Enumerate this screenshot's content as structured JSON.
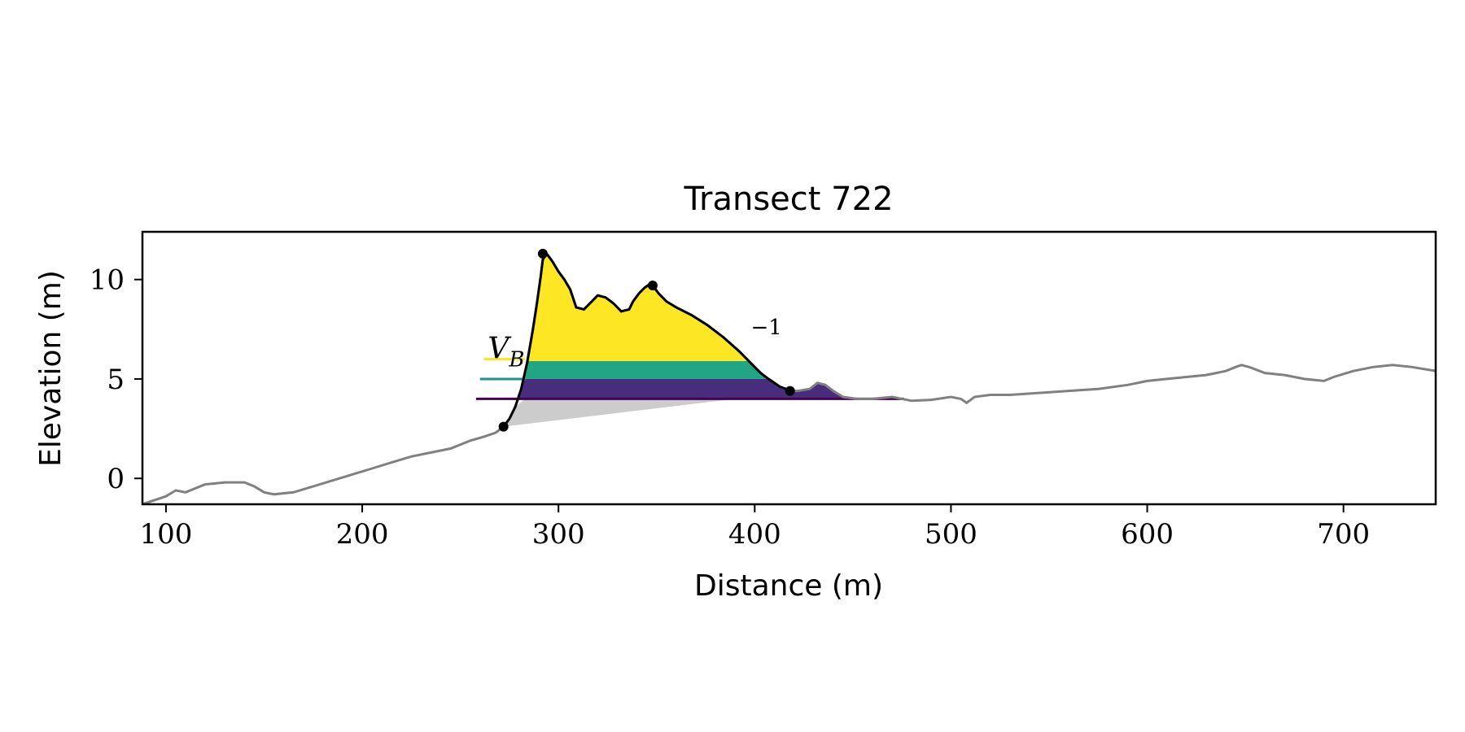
{
  "chart_data": {
    "type": "area",
    "title": "Transect 722",
    "xlabel": "Distance (m)",
    "ylabel": "Elevation (m)",
    "xlim": [
      88,
      747
    ],
    "ylim": [
      -1.3,
      12.4
    ],
    "xticks": [
      100,
      200,
      300,
      400,
      500,
      600,
      700
    ],
    "yticks": [
      0,
      5,
      10
    ],
    "grid": false,
    "legend": "none",
    "annotations": [
      {
        "text_base": "V",
        "text_sub": "B",
        "x": 264,
        "y": 6.2
      },
      {
        "text": "−1",
        "x": 398,
        "y": 7.0
      }
    ],
    "colors": {
      "profile_outer": "#808080",
      "profile_dune": "#000000",
      "base_fill": "#cccccc",
      "band_low": "#472d7b",
      "band_mid": "#21a585",
      "band_high": "#fde725",
      "line_low": "#440154",
      "line_mid": "#21918c",
      "line_high": "#fde725"
    },
    "profile": {
      "x": [
        88,
        100,
        105,
        110,
        120,
        130,
        140,
        145,
        150,
        155,
        165,
        175,
        185,
        195,
        205,
        215,
        225,
        235,
        245,
        255,
        262,
        268,
        272,
        275,
        278,
        281,
        284,
        287,
        289,
        291,
        292,
        294,
        297,
        300,
        303,
        306,
        309,
        313,
        317,
        320,
        324,
        328,
        332,
        336,
        338,
        341,
        344,
        347,
        348,
        351,
        355,
        360,
        368,
        376,
        384,
        392,
        398,
        403,
        407,
        410,
        413,
        416,
        418,
        422,
        428,
        432,
        436,
        440,
        445,
        452,
        460,
        470,
        480,
        490,
        500,
        505,
        508,
        512,
        520,
        530,
        545,
        560,
        575,
        590,
        600,
        610,
        620,
        630,
        640,
        645,
        648,
        652,
        660,
        670,
        680,
        690,
        695,
        705,
        715,
        725,
        735,
        747
      ],
      "y": [
        -1.3,
        -0.9,
        -0.6,
        -0.7,
        -0.3,
        -0.2,
        -0.2,
        -0.4,
        -0.7,
        -0.8,
        -0.7,
        -0.4,
        -0.1,
        0.2,
        0.5,
        0.8,
        1.1,
        1.3,
        1.5,
        1.9,
        2.1,
        2.3,
        2.6,
        3.0,
        3.6,
        4.5,
        5.8,
        7.5,
        8.8,
        10.2,
        11.0,
        11.3,
        10.9,
        10.4,
        10.0,
        9.5,
        8.6,
        8.5,
        8.9,
        9.2,
        9.1,
        8.8,
        8.4,
        8.5,
        8.9,
        9.3,
        9.6,
        9.8,
        9.7,
        9.3,
        8.9,
        8.6,
        8.2,
        7.7,
        7.1,
        6.4,
        5.8,
        5.3,
        5.0,
        4.8,
        4.6,
        4.5,
        4.4,
        4.4,
        4.5,
        4.8,
        4.7,
        4.4,
        4.1,
        4.0,
        4.0,
        4.1,
        3.9,
        3.95,
        4.1,
        4.0,
        3.8,
        4.1,
        4.2,
        4.2,
        4.3,
        4.4,
        4.5,
        4.7,
        4.9,
        5.0,
        5.1,
        5.2,
        5.4,
        5.6,
        5.7,
        5.6,
        5.3,
        5.2,
        5.0,
        4.9,
        5.1,
        5.4,
        5.6,
        5.7,
        5.6,
        5.4
      ]
    },
    "dune_range": [
      272,
      418
    ],
    "key_points": [
      {
        "x": 272,
        "y": 2.6
      },
      {
        "x": 292,
        "y": 11.3
      },
      {
        "x": 348,
        "y": 9.7
      },
      {
        "x": 418,
        "y": 4.4
      }
    ],
    "base_line": {
      "x0": 272,
      "y0": 2.6,
      "x1": 390,
      "y1": 4.0
    },
    "bands": [
      {
        "y0": 4.0,
        "y1": 5.0,
        "x_start": 270,
        "x_end": 476
      },
      {
        "y0": 5.0,
        "y1": 5.9,
        "x_start": 270,
        "x_end": 418
      },
      {
        "y0": 5.9,
        "y1": 12.4,
        "x_start": 270,
        "x_end": 418
      }
    ],
    "level_lines": [
      {
        "y": 4.0,
        "x0": 258,
        "x1": 476
      },
      {
        "y": 5.0,
        "x0": 260,
        "x1": 283
      },
      {
        "y": 6.0,
        "x0": 262,
        "x1": 283
      }
    ]
  }
}
